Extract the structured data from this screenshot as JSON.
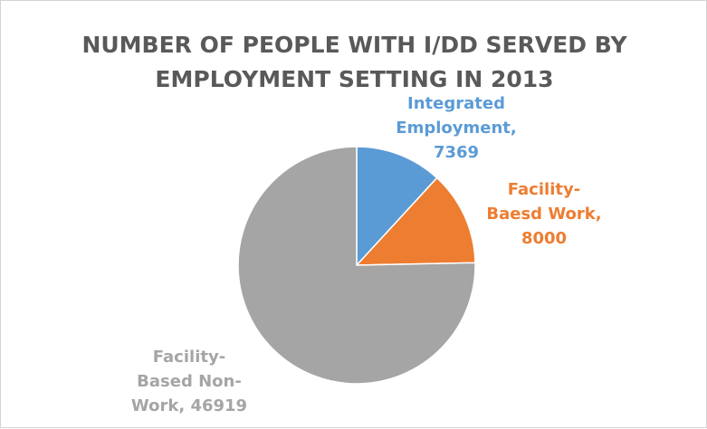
{
  "chart_data": {
    "type": "pie",
    "title": "NUMBER OF PEOPLE WITH I/DD SERVED BY EMPLOYMENT SETTING IN 2013",
    "title_lines": [
      "NUMBER OF PEOPLE WITH I/DD SERVED BY",
      "EMPLOYMENT SETTING IN 2013"
    ],
    "legend": "none",
    "slices": [
      {
        "category": "Integrated Employment",
        "value": 7369,
        "color": "#5b9bd5",
        "label_lines": [
          "Integrated",
          "Employment,",
          "7369"
        ]
      },
      {
        "category": "Facility-Baesd Work",
        "value": 8000,
        "color": "#ed7d31",
        "label_lines": [
          "Facility-",
          "Baesd Work,",
          "8000"
        ]
      },
      {
        "category": "Facility-Based Non-Work",
        "value": 46919,
        "color": "#a5a5a5",
        "label_lines": [
          "Facility-",
          "Based Non-",
          "Work, 46919"
        ]
      }
    ]
  }
}
